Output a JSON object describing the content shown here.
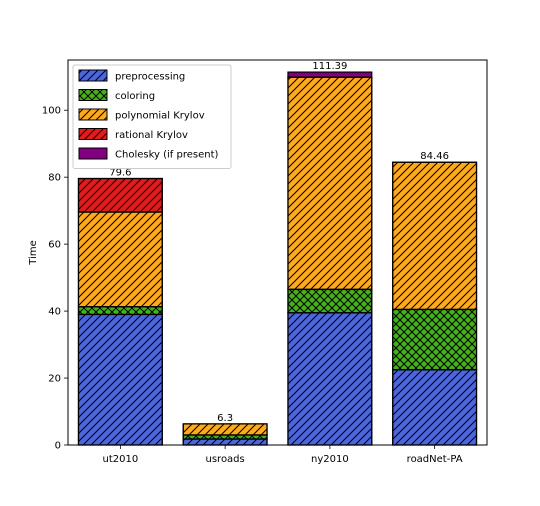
{
  "chart_data": {
    "type": "bar",
    "stacked": true,
    "title": "",
    "xlabel": "",
    "ylabel": "Time",
    "ylim": [
      0,
      115
    ],
    "yticks": [
      0,
      20,
      40,
      60,
      80,
      100
    ],
    "grid": false,
    "legend_position": "upper-left",
    "categories": [
      "ut2010",
      "usroads",
      "ny2010",
      "roadNet-PA"
    ],
    "totals": [
      79.6,
      6.3,
      111.39,
      84.46
    ],
    "series": [
      {
        "name": "preprocessing",
        "color": "#4c66dd",
        "hatch": "diagonal",
        "values": [
          39.0,
          1.8,
          39.5,
          22.5
        ]
      },
      {
        "name": "coloring",
        "color": "#44b31a",
        "hatch": "cross",
        "values": [
          2.3,
          1.2,
          7.0,
          18.0
        ]
      },
      {
        "name": "polynomial Krylov",
        "color": "#ffaa1c",
        "hatch": "diagonal",
        "values": [
          28.3,
          3.3,
          63.39,
          43.96
        ]
      },
      {
        "name": "rational Krylov",
        "color": "#e41a1c",
        "hatch": "diagonal",
        "values": [
          10.0,
          0,
          0,
          0
        ]
      },
      {
        "name": "Cholesky (if present)",
        "color": "#800080",
        "hatch": "none",
        "values": [
          0,
          0,
          1.5,
          0
        ]
      }
    ]
  }
}
